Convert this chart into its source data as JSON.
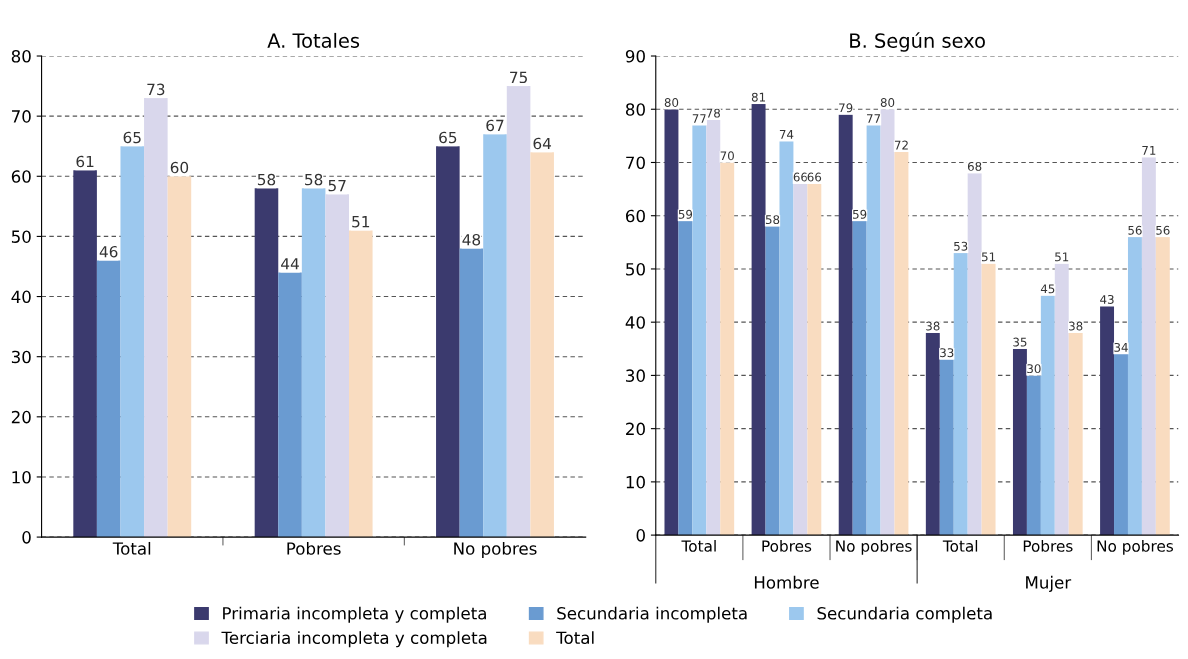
{
  "chart_data": [
    {
      "type": "bar",
      "title": "A. Totales",
      "categories": [
        "Total",
        "Pobres",
        "No pobres"
      ],
      "ylim": [
        0,
        80
      ],
      "yticks": [
        0,
        10,
        20,
        30,
        40,
        50,
        60,
        70,
        80
      ],
      "grid": "y",
      "data_labels": true,
      "legend": "bottom",
      "series": [
        {
          "name": "Primaria incompleta y completa",
          "color": "#3b3a6e",
          "values": [
            61,
            58,
            65
          ]
        },
        {
          "name": "Secundaria incompleta",
          "color": "#6a9bd1",
          "values": [
            46,
            44,
            48
          ]
        },
        {
          "name": "Secundaria completa",
          "color": "#9cc8ee",
          "values": [
            65,
            58,
            67
          ]
        },
        {
          "name": "Terciaria incompleta y completa",
          "color": "#d9d7ec",
          "values": [
            73,
            57,
            75
          ]
        },
        {
          "name": "Total",
          "color": "#f9dcc0",
          "values": [
            60,
            51,
            64
          ]
        }
      ]
    },
    {
      "type": "bar",
      "title": "B. Según sexo",
      "categories": [
        "Total",
        "Pobres",
        "No pobres",
        "Total",
        "Pobres",
        "No pobres"
      ],
      "annotations": [
        "Hombre",
        "Mujer"
      ],
      "ylim": [
        0,
        90
      ],
      "yticks": [
        0,
        10,
        20,
        30,
        40,
        50,
        60,
        70,
        80,
        90
      ],
      "grid": "y",
      "data_labels": true,
      "legend": "bottom",
      "series": [
        {
          "name": "Primaria incompleta y completa",
          "color": "#3b3a6e",
          "values": [
            80,
            81,
            79,
            38,
            35,
            43
          ]
        },
        {
          "name": "Secundaria incompleta",
          "color": "#6a9bd1",
          "values": [
            59,
            58,
            59,
            33,
            30,
            34
          ]
        },
        {
          "name": "Secundaria completa",
          "color": "#9cc8ee",
          "values": [
            77,
            74,
            77,
            53,
            45,
            56
          ]
        },
        {
          "name": "Terciaria incompleta y completa",
          "color": "#d9d7ec",
          "values": [
            78,
            66,
            80,
            68,
            51,
            71
          ]
        },
        {
          "name": "Total",
          "color": "#f9dcc0",
          "values": [
            70,
            66,
            72,
            51,
            38,
            56
          ]
        }
      ]
    }
  ]
}
